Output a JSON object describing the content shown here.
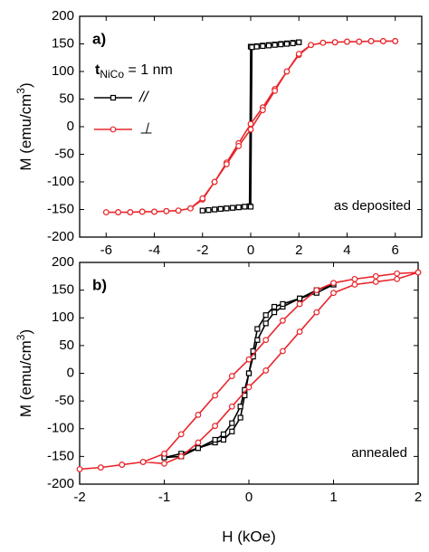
{
  "chart_data": [
    {
      "type": "line",
      "panel_label": "a)",
      "annotation": {
        "main": "t",
        "sub": "NiCo",
        "rest": " = 1 nm"
      },
      "note": "as deposited",
      "y_label": {
        "main": "M (emu/cm",
        "sup": "3",
        "end": ")"
      },
      "xlim": [
        -7.1,
        7.1
      ],
      "xticks": [
        -6,
        -4,
        -2,
        0,
        2,
        4,
        6
      ],
      "ylim": [
        -200,
        200
      ],
      "yticks": [
        -200,
        -150,
        -100,
        -50,
        0,
        50,
        100,
        150,
        200
      ],
      "legend": "upper left",
      "series": [
        {
          "name": "//",
          "color": "#000000",
          "marker": "square",
          "x": [
            2,
            1.75,
            1.5,
            1.25,
            1,
            0.75,
            0.5,
            0.25,
            0,
            -0.05,
            -0.25,
            -0.5,
            -0.75,
            -1,
            -1.25,
            -1.5,
            -1.75,
            -2,
            -1.75,
            -1.5,
            -1.25,
            -1,
            -0.75,
            -0.5,
            -0.25,
            0,
            0.05,
            0.25,
            0.5,
            0.75,
            1,
            1.25,
            1.5,
            1.75,
            2
          ],
          "values": [
            153,
            152,
            151,
            150,
            149,
            148,
            147,
            146,
            145,
            -144,
            -145,
            -146,
            -147,
            -148,
            -149,
            -150,
            -151,
            -152,
            -151,
            -150,
            -149,
            -148,
            -147,
            -146,
            -145,
            -145,
            144,
            145,
            146,
            147,
            148,
            149,
            150,
            151,
            153
          ]
        },
        {
          "name": "⊥",
          "color": "#e8262b",
          "marker": "circle",
          "x": [
            6,
            5.5,
            5,
            4.5,
            4,
            3.5,
            3,
            2.5,
            2,
            1.5,
            1,
            0.5,
            0,
            -0.5,
            -1,
            -1.5,
            -2,
            -2.5,
            -3,
            -3.5,
            -4,
            -4.5,
            -5,
            -5.5,
            -6,
            -5.5,
            -5,
            -4.5,
            -4,
            -3.5,
            -3,
            -2.5,
            -2,
            -1.5,
            -1,
            -0.5,
            0,
            0.5,
            1,
            1.5,
            2,
            2.5,
            3,
            3.5,
            4,
            4.5,
            5,
            5.5,
            6
          ],
          "values": [
            155,
            155,
            155,
            154,
            154,
            153,
            152,
            148,
            130,
            100,
            68,
            35,
            5,
            -30,
            -65,
            -100,
            -132,
            -148,
            -152,
            -153,
            -154,
            -154,
            -155,
            -155,
            -155,
            -155,
            -155,
            -154,
            -154,
            -153,
            -152,
            -148,
            -130,
            -100,
            -68,
            -35,
            -5,
            30,
            65,
            100,
            132,
            148,
            152,
            153,
            154,
            154,
            155,
            155,
            155
          ]
        }
      ]
    },
    {
      "type": "line",
      "panel_label": "b)",
      "note": "annealed",
      "y_label": {
        "main": "M (emu/cm",
        "sup": "3",
        "end": ")"
      },
      "x_label": "H (kOe)",
      "xlim": [
        -2,
        2
      ],
      "xticks": [
        -2,
        -1,
        0,
        1,
        2
      ],
      "ylim": [
        -200,
        200
      ],
      "yticks": [
        -200,
        -150,
        -100,
        -50,
        0,
        50,
        100,
        150,
        200
      ],
      "series": [
        {
          "color": "#000000",
          "marker": "square",
          "x": [
            1,
            0.8,
            0.6,
            0.4,
            0.3,
            0.2,
            0.1,
            0.05,
            0,
            -0.05,
            -0.1,
            -0.2,
            -0.3,
            -0.4,
            -0.6,
            -0.8,
            -1,
            -0.8,
            -0.6,
            -0.4,
            -0.3,
            -0.2,
            -0.1,
            -0.05,
            0,
            0.05,
            0.1,
            0.2,
            0.3,
            0.4,
            0.6,
            0.8,
            1
          ],
          "values": [
            160,
            150,
            135,
            120,
            110,
            90,
            60,
            30,
            0,
            -40,
            -80,
            -105,
            -120,
            -125,
            -135,
            -145,
            -152,
            -150,
            -135,
            -120,
            -110,
            -90,
            -60,
            -30,
            0,
            40,
            80,
            105,
            120,
            125,
            135,
            145,
            160
          ]
        },
        {
          "color": "#e8262b",
          "marker": "circle",
          "x": [
            2,
            1.75,
            1.5,
            1.25,
            1,
            0.8,
            0.6,
            0.4,
            0.2,
            0,
            -0.2,
            -0.4,
            -0.6,
            -0.8,
            -1,
            -1.25,
            -1.5,
            -1.75,
            -2,
            -1.75,
            -1.5,
            -1.25,
            -1,
            -0.8,
            -0.6,
            -0.4,
            -0.2,
            0,
            0.2,
            0.4,
            0.6,
            0.8,
            1,
            1.25,
            1.5,
            1.75,
            2
          ],
          "values": [
            182,
            180,
            175,
            170,
            163,
            150,
            125,
            95,
            60,
            25,
            -5,
            -40,
            -75,
            -110,
            -145,
            -160,
            -165,
            -170,
            -173,
            -170,
            -165,
            -160,
            -163,
            -150,
            -125,
            -95,
            -60,
            -25,
            5,
            40,
            75,
            110,
            145,
            160,
            165,
            170,
            182
          ]
        }
      ]
    }
  ]
}
